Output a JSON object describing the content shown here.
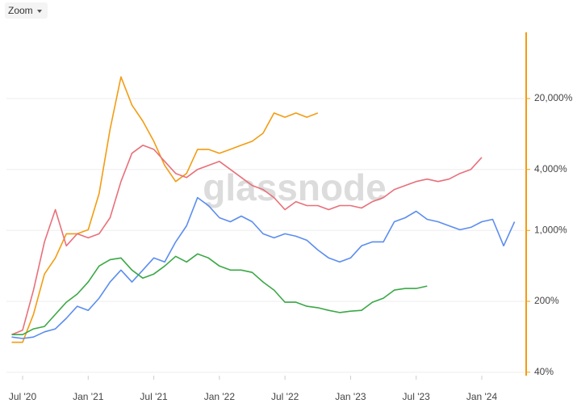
{
  "zoom_button": "Zoom",
  "chart_data": {
    "type": "line",
    "watermark": "glassnode",
    "x": [
      "2020-06",
      "2020-07",
      "2020-08",
      "2020-09",
      "2020-10",
      "2020-11",
      "2020-12",
      "2021-01",
      "2021-02",
      "2021-03",
      "2021-04",
      "2021-05",
      "2021-06",
      "2021-07",
      "2021-08",
      "2021-09",
      "2021-10",
      "2021-11",
      "2021-12",
      "2022-01",
      "2022-02",
      "2022-03",
      "2022-04",
      "2022-05",
      "2022-06",
      "2022-07",
      "2022-08",
      "2022-09",
      "2022-10",
      "2022-11",
      "2022-12",
      "2023-01",
      "2023-02",
      "2023-03",
      "2023-04",
      "2023-05",
      "2023-06",
      "2023-07",
      "2023-08",
      "2023-09",
      "2023-10",
      "2023-11",
      "2023-12",
      "2024-01",
      "2024-02",
      "2024-03",
      "2024-04"
    ],
    "xticks": [
      {
        "value": "2020-07",
        "label": "Jul '20"
      },
      {
        "value": "2021-01",
        "label": "Jan '21"
      },
      {
        "value": "2021-07",
        "label": "Jul '21"
      },
      {
        "value": "2022-01",
        "label": "Jan '22"
      },
      {
        "value": "2022-07",
        "label": "Jul '22"
      },
      {
        "value": "2023-01",
        "label": "Jan '23"
      },
      {
        "value": "2023-07",
        "label": "Jul '23"
      },
      {
        "value": "2024-01",
        "label": "Jan '24"
      }
    ],
    "y_scale": "log",
    "y_axis_side": "right",
    "y_axis_color": "#f39c12",
    "ylim": [
      37,
      90000
    ],
    "yticks": [
      {
        "value": 40,
        "label": "40%"
      },
      {
        "value": 200,
        "label": "200%"
      },
      {
        "value": 1000,
        "label": "1,000%"
      },
      {
        "value": 4000,
        "label": "4,000%"
      },
      {
        "value": 20000,
        "label": "20,000%"
      }
    ],
    "grid": true,
    "series": [
      {
        "color": "#f39c12",
        "values": [
          79,
          79,
          149,
          372,
          536,
          927,
          927,
          1016,
          2312,
          9960,
          32700,
          17250,
          11970,
          7580,
          4380,
          3040,
          3650,
          6310,
          6310,
          5770,
          6310,
          6920,
          7580,
          9100,
          14400,
          13100,
          14400,
          13100,
          14400,
          null,
          null,
          null,
          null,
          null,
          null,
          null,
          null,
          null,
          null,
          null,
          null,
          null,
          null,
          null,
          null,
          null,
          null
        ]
      },
      {
        "color": "#e8707a",
        "values": [
          94,
          104,
          258,
          772,
          1604,
          705,
          927,
          846,
          927,
          1336,
          3040,
          5770,
          6920,
          6310,
          4800,
          3650,
          3330,
          4000,
          4380,
          4800,
          4000,
          3330,
          2776,
          2536,
          2108,
          1604,
          1926,
          1758,
          1758,
          1604,
          1758,
          1758,
          1664,
          1926,
          2108,
          2536,
          2776,
          3040,
          3212,
          3040,
          3212,
          3650,
          4000,
          5260,
          null,
          null,
          null
        ]
      },
      {
        "color": "#5b8def",
        "values": [
          89,
          86,
          89,
          100,
          107,
          136,
          179,
          163,
          215,
          310,
          407,
          310,
          407,
          536,
          489,
          772,
          1112,
          2108,
          1758,
          1336,
          1219,
          1387,
          1219,
          927,
          846,
          927,
          877,
          801,
          643,
          536,
          489,
          536,
          705,
          772,
          772,
          1219,
          1336,
          1547,
          1288,
          1219,
          1112,
          1016,
          1073,
          1219,
          1288,
          705,
          1219
        ]
      },
      {
        "color": "#3aa845",
        "values": [
          94,
          94,
          107,
          113,
          149,
          196,
          236,
          310,
          446,
          516,
          536,
          407,
          339,
          372,
          446,
          556,
          489,
          587,
          536,
          446,
          407,
          407,
          386,
          310,
          258,
          196,
          196,
          179,
          173,
          163,
          155,
          160,
          163,
          196,
          215,
          258,
          268,
          268,
          283,
          null,
          null,
          null,
          null,
          null,
          null,
          null,
          null
        ]
      }
    ]
  }
}
